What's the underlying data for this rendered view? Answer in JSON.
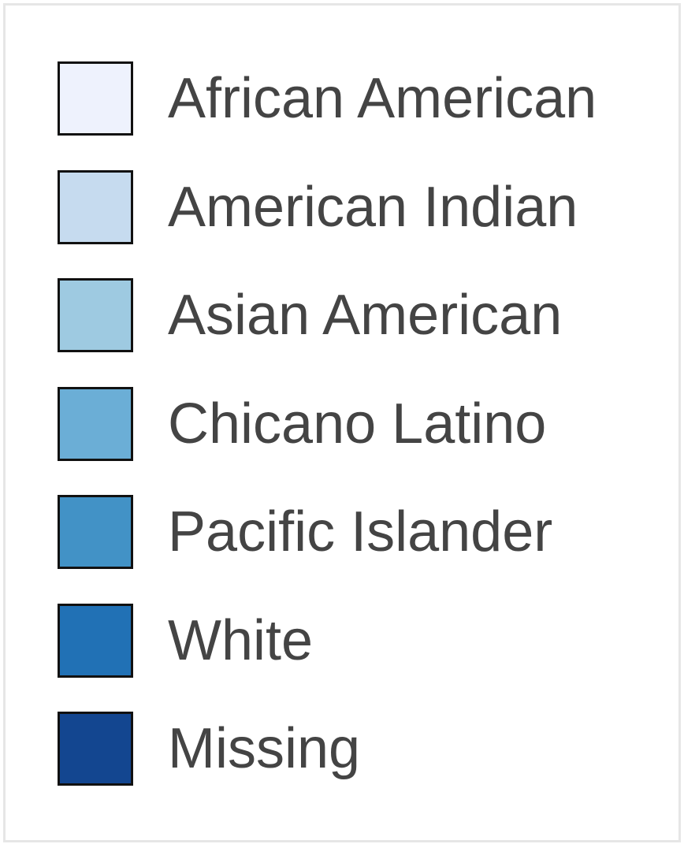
{
  "chart_data": {
    "type": "legend",
    "legend": [
      {
        "label": "African American",
        "color": "#eef2fd"
      },
      {
        "label": "American Indian",
        "color": "#c6dbef"
      },
      {
        "label": "Asian American",
        "color": "#9ecae1"
      },
      {
        "label": "Chicano Latino",
        "color": "#6baed6"
      },
      {
        "label": "Pacific Islander",
        "color": "#4292c6"
      },
      {
        "label": "White",
        "color": "#2171b5"
      },
      {
        "label": "Missing",
        "color": "#134690"
      }
    ]
  }
}
